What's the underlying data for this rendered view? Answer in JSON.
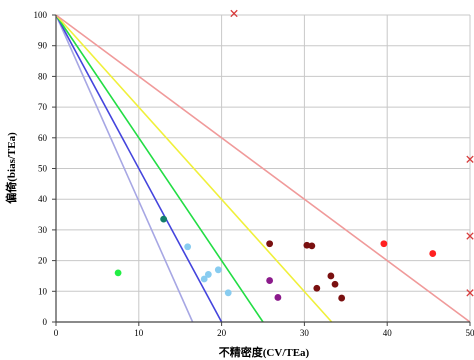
{
  "chart_data": {
    "type": "scatter",
    "xlabel": "不精密度(CV/TEa)",
    "ylabel": "偏倚(bias/TEa)",
    "xlim": [
      0,
      50
    ],
    "ylim": [
      0,
      100
    ],
    "xticks": [
      0,
      10,
      20,
      30,
      40,
      50
    ],
    "yticks": [
      0,
      10,
      20,
      30,
      40,
      50,
      60,
      70,
      80,
      90,
      100
    ],
    "grid": true,
    "reference_lines": [
      {
        "from": [
          0,
          100
        ],
        "to": [
          16.5,
          0
        ],
        "color": "#a7a7e4"
      },
      {
        "from": [
          0,
          100
        ],
        "to": [
          20,
          0
        ],
        "color": "#4444dd"
      },
      {
        "from": [
          0,
          100
        ],
        "to": [
          25,
          0
        ],
        "color": "#22dd44"
      },
      {
        "from": [
          0,
          100
        ],
        "to": [
          33.3,
          0
        ],
        "color": "#f0f03a"
      },
      {
        "from": [
          0,
          100
        ],
        "to": [
          50,
          0
        ],
        "color": "#f09a9a"
      }
    ],
    "series": [
      {
        "marker": "circle",
        "color": "#22ee44",
        "points": [
          [
            7.5,
            16
          ]
        ]
      },
      {
        "marker": "circle",
        "color": "#137f6a",
        "points": [
          [
            13,
            33.5
          ]
        ]
      },
      {
        "marker": "circle",
        "color": "#88ccf0",
        "points": [
          [
            15.9,
            24.5
          ],
          [
            17.9,
            14
          ],
          [
            18.4,
            15.5
          ],
          [
            19.6,
            17
          ],
          [
            20.8,
            9.5
          ]
        ]
      },
      {
        "marker": "circle",
        "color": "#8b1a8b",
        "points": [
          [
            25.8,
            13.5
          ],
          [
            26.8,
            8
          ]
        ]
      },
      {
        "marker": "circle",
        "color": "#7a1010",
        "points": [
          [
            25.8,
            25.5
          ],
          [
            30.3,
            25
          ],
          [
            30.9,
            24.8
          ],
          [
            31.5,
            11
          ],
          [
            33.2,
            15
          ],
          [
            33.7,
            12.3
          ],
          [
            34.5,
            7.8
          ]
        ]
      },
      {
        "marker": "circle",
        "color": "#ff2020",
        "points": [
          [
            39.6,
            25.5
          ],
          [
            45.5,
            22.3
          ]
        ]
      },
      {
        "marker": "x",
        "color": "#d83c3c",
        "points": [
          [
            21.5,
            100.5
          ],
          [
            50,
            53
          ],
          [
            50,
            28
          ],
          [
            50,
            9.5
          ]
        ]
      }
    ]
  }
}
